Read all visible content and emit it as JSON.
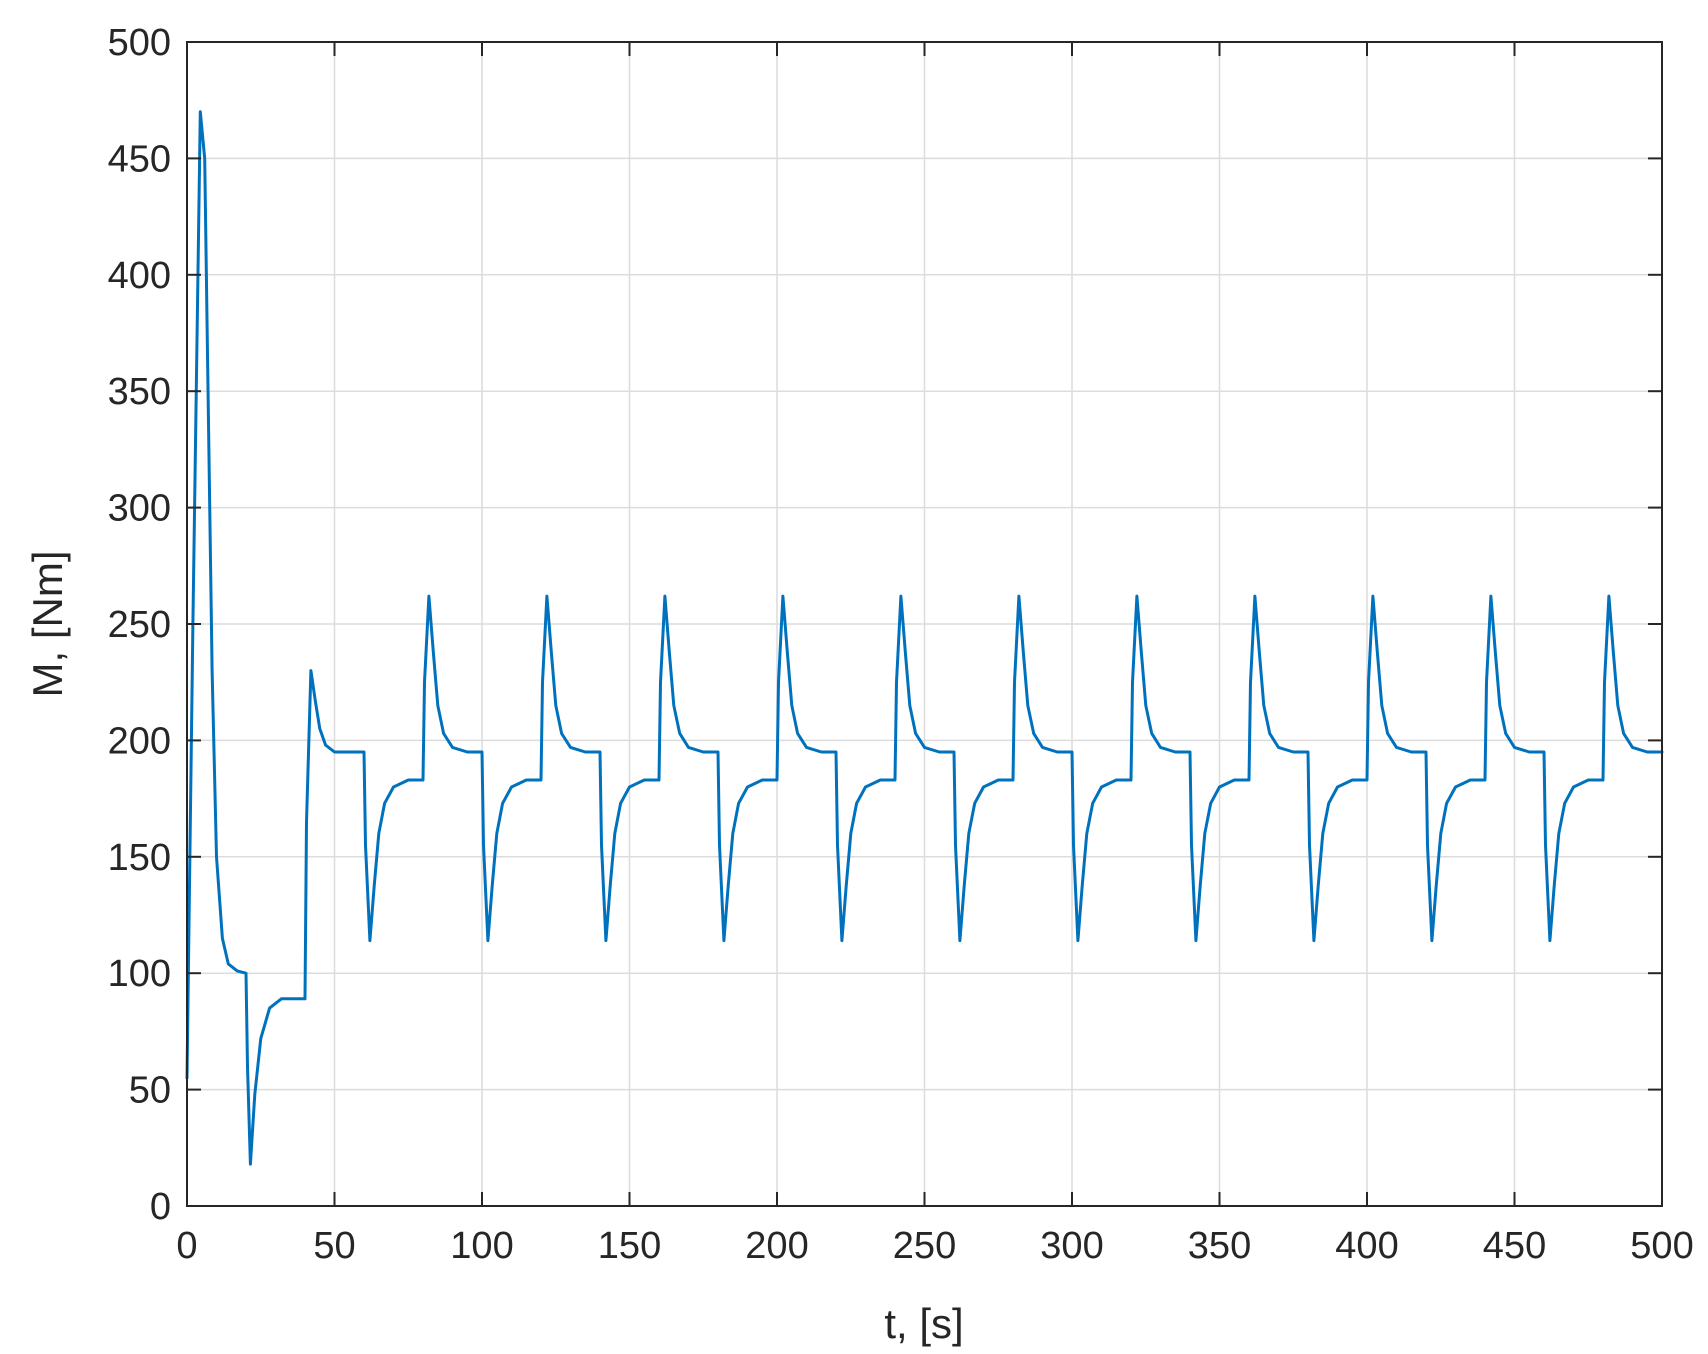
{
  "chart_data": {
    "type": "line",
    "title": "",
    "xlabel": "t, [s]",
    "ylabel": "M, [Nm]",
    "xlim": [
      0,
      500
    ],
    "ylim": [
      0,
      500
    ],
    "xticks": [
      0,
      50,
      100,
      150,
      200,
      250,
      300,
      350,
      400,
      450,
      500
    ],
    "yticks": [
      0,
      50,
      100,
      150,
      200,
      250,
      300,
      350,
      400,
      450,
      500
    ],
    "xtick_labels": [
      "0",
      "50",
      "100",
      "150",
      "200",
      "250",
      "300",
      "350",
      "400",
      "450",
      "500"
    ],
    "ytick_labels": [
      "0",
      "50",
      "100",
      "150",
      "200",
      "250",
      "300",
      "350",
      "400",
      "450",
      "500"
    ],
    "grid": true,
    "line_color": "#0072BD",
    "series": [
      {
        "x": [
          0,
          2,
          4.5,
          6,
          7,
          8.5,
          10,
          12,
          14,
          17,
          20,
          20.5,
          21.5,
          23,
          25,
          28,
          32,
          36,
          40,
          40.5,
          42,
          43.5,
          45,
          47,
          50,
          55,
          60,
          60.5,
          62,
          63.5,
          65,
          67,
          70,
          75,
          80,
          80.5,
          82,
          83.5,
          85,
          87,
          90,
          95,
          100,
          100.5,
          102,
          103.5,
          105,
          107,
          110,
          115,
          120,
          120.5,
          122,
          123.5,
          125,
          127,
          130,
          135,
          140,
          140.5,
          142,
          143.5,
          145,
          147,
          150,
          155,
          160,
          160.5,
          162,
          163.5,
          165,
          167,
          170,
          175,
          180,
          180.5,
          182,
          183.5,
          185,
          187,
          190,
          195,
          200,
          200.5,
          202,
          203.5,
          205,
          207,
          210,
          215,
          220,
          220.5,
          222,
          223.5,
          225,
          227,
          230,
          235,
          240,
          240.5,
          242,
          243.5,
          245,
          247,
          250,
          255,
          260,
          260.5,
          262,
          263.5,
          265,
          267,
          270,
          275,
          280,
          280.5,
          282,
          283.5,
          285,
          287,
          290,
          295,
          300,
          300.5,
          302,
          303.5,
          305,
          307,
          310,
          315,
          320,
          320.5,
          322,
          323.5,
          325,
          327,
          330,
          335,
          340,
          340.5,
          342,
          343.5,
          345,
          347,
          350,
          355,
          360,
          360.5,
          362,
          363.5,
          365,
          367,
          370,
          375,
          380,
          380.5,
          382,
          383.5,
          385,
          387,
          390,
          395,
          400,
          400.5,
          402,
          403.5,
          405,
          407,
          410,
          415,
          420,
          420.5,
          422,
          423.5,
          425,
          427,
          430,
          435,
          440,
          440.5,
          442,
          443.5,
          445,
          447,
          450,
          455,
          460,
          460.5,
          462,
          463.5,
          465,
          467,
          470,
          475,
          480,
          480.5,
          482,
          483.5,
          485,
          487,
          490,
          495,
          500
        ],
        "y": [
          55,
          250,
          470,
          450,
          360,
          230,
          150,
          115,
          104,
          101,
          100,
          60,
          18,
          48,
          72,
          85,
          89,
          89,
          89,
          165,
          230,
          217,
          205,
          198,
          195,
          195,
          195,
          155,
          114,
          138,
          160,
          173,
          180,
          183,
          183,
          225,
          262,
          238,
          215,
          203,
          197,
          195,
          195,
          155,
          114,
          138,
          160,
          173,
          180,
          183,
          183,
          225,
          262,
          238,
          215,
          203,
          197,
          195,
          195,
          155,
          114,
          138,
          160,
          173,
          180,
          183,
          183,
          225,
          262,
          238,
          215,
          203,
          197,
          195,
          195,
          155,
          114,
          138,
          160,
          173,
          180,
          183,
          183,
          225,
          262,
          238,
          215,
          203,
          197,
          195,
          195,
          155,
          114,
          138,
          160,
          173,
          180,
          183,
          183,
          225,
          262,
          238,
          215,
          203,
          197,
          195,
          195,
          155,
          114,
          138,
          160,
          173,
          180,
          183,
          183,
          225,
          262,
          238,
          215,
          203,
          197,
          195,
          195,
          155,
          114,
          138,
          160,
          173,
          180,
          183,
          183,
          225,
          262,
          238,
          215,
          203,
          197,
          195,
          195,
          155,
          114,
          138,
          160,
          173,
          180,
          183,
          183,
          225,
          262,
          238,
          215,
          203,
          197,
          195,
          195,
          155,
          114,
          138,
          160,
          173,
          180,
          183,
          183,
          225,
          262,
          238,
          215,
          203,
          197,
          195,
          195,
          155,
          114,
          138,
          160,
          173,
          180,
          183,
          183,
          225,
          262,
          238,
          215,
          203,
          197,
          195,
          195,
          155,
          114,
          138,
          160,
          173,
          180,
          183,
          183,
          225,
          262,
          238,
          215,
          203,
          197,
          195,
          195
        ]
      }
    ]
  }
}
